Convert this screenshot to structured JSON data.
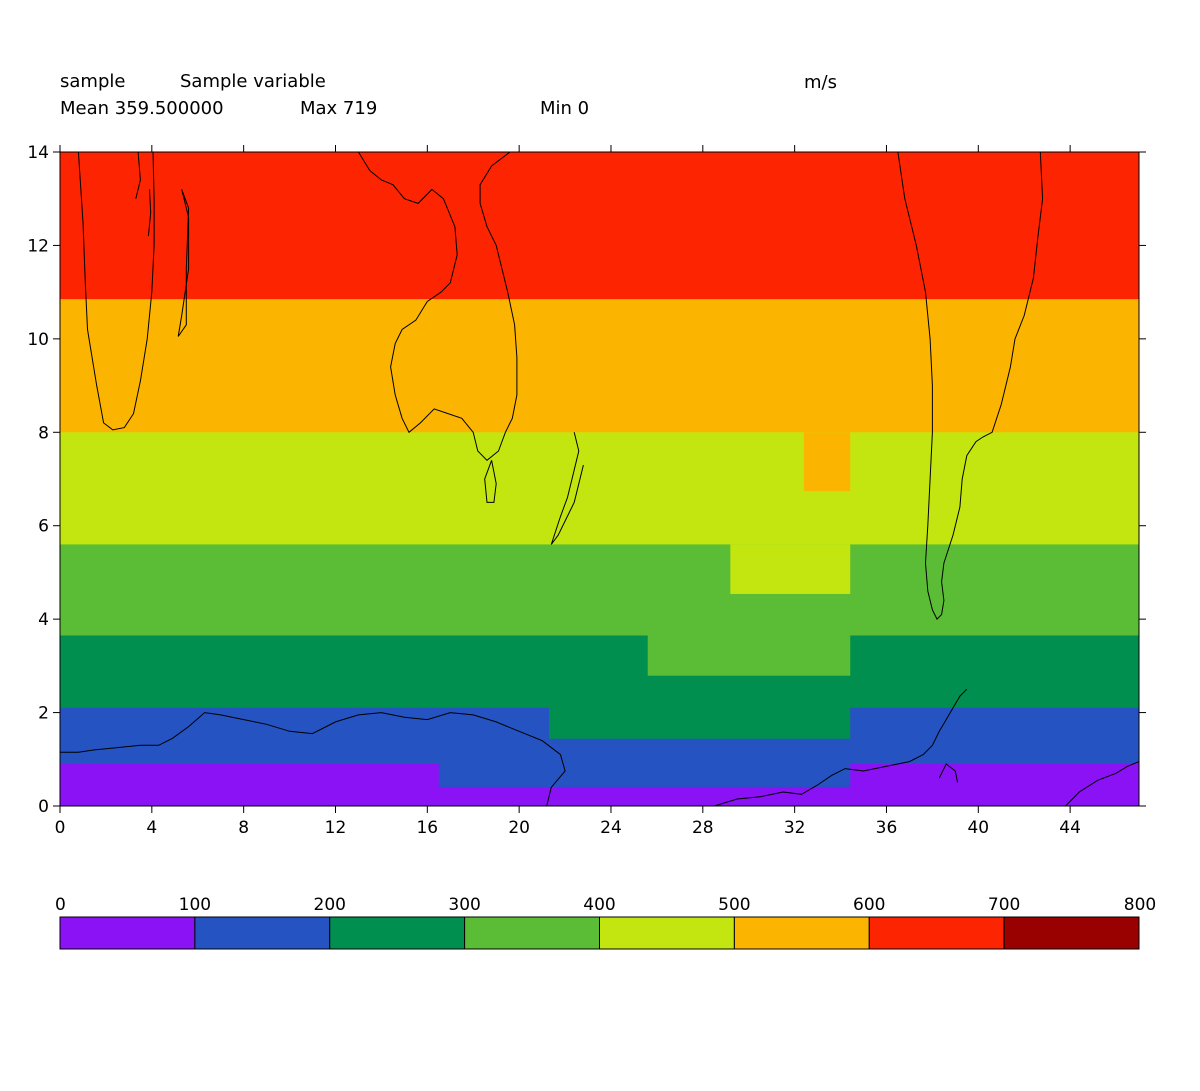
{
  "header": {
    "dataset": "sample",
    "variable": "Sample variable",
    "units": "m/s",
    "mean_text": "Mean 359.500000",
    "max_text": "Max 719",
    "min_text": "Min 0"
  },
  "chart_data": {
    "type": "heatmap",
    "xlim": [
      0,
      47
    ],
    "ylim": [
      0,
      14
    ],
    "x_ticks": [
      "0",
      "4",
      "8",
      "12",
      "16",
      "20",
      "24",
      "28",
      "32",
      "36",
      "40",
      "44"
    ],
    "y_ticks": [
      "0",
      "2",
      "4",
      "6",
      "8",
      "10",
      "12",
      "14"
    ],
    "colorbar": {
      "levels": [
        "0",
        "100",
        "200",
        "300",
        "400",
        "500",
        "600",
        "700",
        "800"
      ],
      "colors": [
        "#8a12f5",
        "#2553c2",
        "#008f4f",
        "#5bbd35",
        "#c4e610",
        "#fbb500",
        "#fd2402",
        "#990000"
      ]
    },
    "regions": [
      {
        "x0": 0,
        "x1": 47,
        "y0": 0,
        "y1": 14,
        "level": 6
      },
      {
        "x0": 0,
        "x1": 47,
        "y0": 0,
        "y1": 10.85,
        "level": 5
      },
      {
        "x0": 0,
        "x1": 47,
        "y0": 0,
        "y1": 8,
        "level": 4
      },
      {
        "x0": 32.4,
        "x1": 34.4,
        "y0": 6.75,
        "y1": 8,
        "level": 5
      },
      {
        "x0": 0,
        "x1": 47,
        "y0": 0,
        "y1": 5.6,
        "level": 3
      },
      {
        "x0": 29.2,
        "x1": 34.4,
        "y0": 4.55,
        "y1": 5.6,
        "level": 4
      },
      {
        "x0": 0,
        "x1": 47,
        "y0": 0,
        "y1": 3.65,
        "level": 2
      },
      {
        "x0": 25.6,
        "x1": 34.4,
        "y0": 2.8,
        "y1": 3.65,
        "level": 3
      },
      {
        "x0": 0,
        "x1": 47,
        "y0": 0,
        "y1": 2.1,
        "level": 1
      },
      {
        "x0": 21.3,
        "x1": 34.4,
        "y0": 1.45,
        "y1": 2.1,
        "level": 2
      },
      {
        "x0": 0,
        "x1": 47,
        "y0": 0,
        "y1": 0.9,
        "level": 0
      },
      {
        "x0": 16.5,
        "x1": 34.4,
        "y0": 0.42,
        "y1": 0.9,
        "level": 1
      }
    ],
    "coastlines": [
      [
        [
          0.8,
          14
        ],
        [
          1.0,
          12.5
        ],
        [
          1.1,
          11.2
        ],
        [
          1.2,
          10.2
        ],
        [
          1.6,
          9.0
        ],
        [
          1.9,
          8.2
        ],
        [
          2.3,
          8.05
        ],
        [
          2.8,
          8.1
        ],
        [
          3.2,
          8.4
        ],
        [
          3.5,
          9.1
        ],
        [
          3.8,
          10.0
        ],
        [
          4.0,
          11.0
        ],
        [
          4.1,
          12.0
        ],
        [
          4.1,
          13.0
        ],
        [
          4.05,
          14
        ]
      ],
      [
        [
          5.3,
          13.2
        ],
        [
          5.6,
          12.6
        ],
        [
          5.6,
          11.5
        ],
        [
          5.3,
          10.5
        ],
        [
          5.15,
          10.05
        ],
        [
          5.5,
          10.3
        ],
        [
          5.5,
          11.5
        ],
        [
          5.6,
          12.8
        ],
        [
          5.3,
          13.2
        ]
      ],
      [
        [
          3.4,
          14
        ],
        [
          3.5,
          13.4
        ],
        [
          3.3,
          13.0
        ]
      ],
      [
        [
          3.85,
          12.2
        ],
        [
          3.95,
          12.7
        ],
        [
          3.9,
          13.2
        ]
      ],
      [
        [
          13.0,
          14
        ],
        [
          13.5,
          13.6
        ],
        [
          14.0,
          13.4
        ],
        [
          14.5,
          13.3
        ],
        [
          15.0,
          13.0
        ],
        [
          15.6,
          12.9
        ],
        [
          16.2,
          13.2
        ],
        [
          16.7,
          13.0
        ],
        [
          17.2,
          12.4
        ],
        [
          17.3,
          11.8
        ],
        [
          17.0,
          11.2
        ],
        [
          16.6,
          11.0
        ],
        [
          16.0,
          10.8
        ],
        [
          15.5,
          10.4
        ],
        [
          14.9,
          10.2
        ],
        [
          14.6,
          9.9
        ],
        [
          14.4,
          9.4
        ],
        [
          14.6,
          8.8
        ],
        [
          14.9,
          8.3
        ],
        [
          15.2,
          8.0
        ],
        [
          15.7,
          8.2
        ],
        [
          16.3,
          8.5
        ],
        [
          16.9,
          8.4
        ],
        [
          17.5,
          8.3
        ],
        [
          18.0,
          8.0
        ],
        [
          18.2,
          7.6
        ],
        [
          18.6,
          7.4
        ],
        [
          19.1,
          7.6
        ],
        [
          19.4,
          8.0
        ],
        [
          19.7,
          8.3
        ],
        [
          19.9,
          8.8
        ],
        [
          19.9,
          9.6
        ],
        [
          19.8,
          10.3
        ],
        [
          19.5,
          11.0
        ],
        [
          19.2,
          11.6
        ],
        [
          19.0,
          12.0
        ],
        [
          18.6,
          12.4
        ],
        [
          18.3,
          12.9
        ],
        [
          18.3,
          13.3
        ],
        [
          18.8,
          13.7
        ],
        [
          19.6,
          14
        ]
      ],
      [
        [
          18.8,
          7.4
        ],
        [
          19.0,
          6.9
        ],
        [
          18.9,
          6.5
        ],
        [
          18.6,
          6.5
        ],
        [
          18.5,
          7.0
        ],
        [
          18.8,
          7.4
        ]
      ],
      [
        [
          22.4,
          8.0
        ],
        [
          22.6,
          7.6
        ],
        [
          22.3,
          7.0
        ],
        [
          22.1,
          6.6
        ],
        [
          21.8,
          6.2
        ],
        [
          21.6,
          5.9
        ],
        [
          21.4,
          5.6
        ],
        [
          21.7,
          5.8
        ],
        [
          22.0,
          6.1
        ],
        [
          22.4,
          6.5
        ],
        [
          22.6,
          6.9
        ],
        [
          22.8,
          7.3
        ]
      ],
      [
        [
          36.5,
          14
        ],
        [
          36.8,
          13.0
        ],
        [
          37.3,
          12.0
        ],
        [
          37.7,
          11.0
        ],
        [
          37.9,
          10.0
        ],
        [
          38.0,
          9.0
        ],
        [
          38.0,
          8.0
        ],
        [
          37.9,
          7.0
        ],
        [
          37.8,
          6.0
        ],
        [
          37.7,
          5.2
        ],
        [
          37.8,
          4.6
        ],
        [
          38.0,
          4.2
        ],
        [
          38.2,
          4.0
        ],
        [
          38.4,
          4.1
        ],
        [
          38.5,
          4.4
        ],
        [
          38.4,
          4.8
        ],
        [
          38.5,
          5.2
        ],
        [
          38.9,
          5.8
        ],
        [
          39.2,
          6.4
        ],
        [
          39.3,
          7.0
        ],
        [
          39.5,
          7.5
        ],
        [
          39.9,
          7.8
        ],
        [
          40.2,
          7.9
        ],
        [
          40.6,
          8.0
        ],
        [
          41.0,
          8.6
        ],
        [
          41.4,
          9.4
        ],
        [
          41.6,
          10.0
        ],
        [
          42.0,
          10.5
        ],
        [
          42.4,
          11.3
        ],
        [
          42.6,
          12.2
        ],
        [
          42.8,
          13.0
        ],
        [
          42.7,
          14
        ]
      ],
      [
        [
          0,
          1.15
        ],
        [
          0.8,
          1.15
        ],
        [
          1.5,
          1.2
        ],
        [
          2.5,
          1.25
        ],
        [
          3.5,
          1.3
        ],
        [
          4.3,
          1.3
        ],
        [
          4.9,
          1.45
        ],
        [
          5.6,
          1.7
        ],
        [
          6.3,
          2.0
        ],
        [
          7.0,
          1.95
        ],
        [
          8.0,
          1.85
        ],
        [
          9.0,
          1.75
        ],
        [
          10.0,
          1.6
        ],
        [
          11.0,
          1.55
        ],
        [
          12.0,
          1.8
        ],
        [
          13.0,
          1.95
        ],
        [
          14.0,
          2.0
        ],
        [
          15.0,
          1.9
        ],
        [
          16.0,
          1.85
        ],
        [
          17.0,
          2.0
        ],
        [
          18.0,
          1.95
        ],
        [
          19.0,
          1.8
        ],
        [
          20.0,
          1.6
        ],
        [
          21.0,
          1.4
        ],
        [
          21.8,
          1.1
        ],
        [
          22.0,
          0.75
        ],
        [
          21.4,
          0.4
        ],
        [
          21.2,
          0
        ]
      ],
      [
        [
          28.5,
          0
        ],
        [
          29.5,
          0.15
        ],
        [
          30.5,
          0.2
        ],
        [
          31.5,
          0.3
        ],
        [
          32.3,
          0.25
        ],
        [
          33.0,
          0.45
        ],
        [
          33.6,
          0.65
        ],
        [
          34.2,
          0.8
        ],
        [
          35.0,
          0.75
        ],
        [
          36.0,
          0.85
        ],
        [
          37.0,
          0.95
        ],
        [
          37.6,
          1.1
        ],
        [
          38.0,
          1.3
        ],
        [
          38.3,
          1.6
        ],
        [
          38.6,
          1.85
        ],
        [
          38.9,
          2.1
        ],
        [
          39.2,
          2.35
        ],
        [
          39.5,
          2.5
        ]
      ],
      [
        [
          38.3,
          0.6
        ],
        [
          38.6,
          0.9
        ],
        [
          39.0,
          0.75
        ],
        [
          39.1,
          0.5
        ]
      ],
      [
        [
          43.8,
          0
        ],
        [
          44.4,
          0.3
        ],
        [
          45.2,
          0.55
        ],
        [
          46.0,
          0.7
        ],
        [
          46.5,
          0.85
        ],
        [
          47,
          0.95
        ]
      ]
    ]
  }
}
